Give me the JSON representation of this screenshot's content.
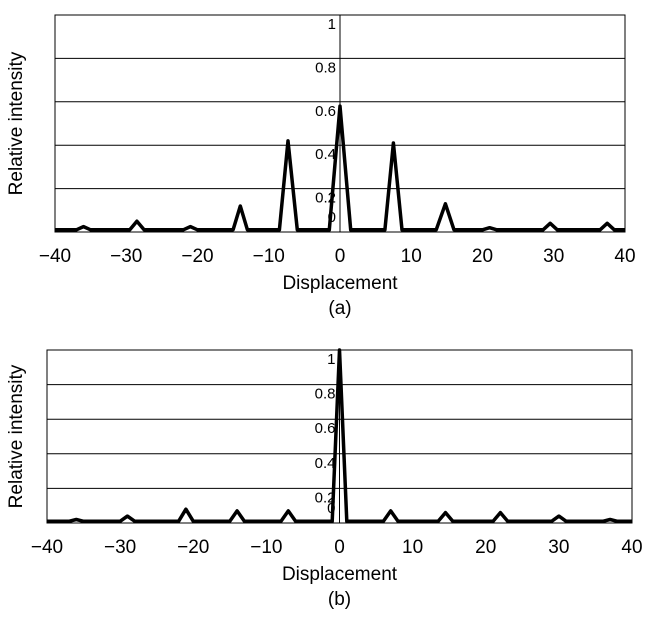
{
  "chart_data": [
    {
      "type": "line",
      "caption": "(a)",
      "xlabel": "Displacement",
      "ylabel": "Relative intensity",
      "color": "#000000",
      "grid": true,
      "xlim": [
        -40,
        40
      ],
      "xticks": [
        {
          "value": -40,
          "label": "−40"
        },
        {
          "value": -30,
          "label": "−30"
        },
        {
          "value": -20,
          "label": "−20"
        },
        {
          "value": -10,
          "label": "−10"
        },
        0,
        10,
        20,
        30,
        40
      ],
      "ylim": [
        0,
        1
      ],
      "yticks": [
        0,
        0.2,
        0.4,
        0.6,
        0.8,
        1
      ],
      "x": [
        -40,
        -37,
        -36,
        -35,
        -29.5,
        -28.5,
        -27.5,
        -22,
        -21,
        -20,
        -15,
        -14,
        -13,
        -8.5,
        -7.3,
        -6,
        -1.5,
        0,
        1.5,
        6.3,
        7.5,
        8.7,
        13.5,
        14.8,
        16,
        20,
        21,
        22,
        28.5,
        29.5,
        30.5,
        36.5,
        37.5,
        38.5,
        40
      ],
      "values": [
        0.01,
        0.01,
        0.025,
        0.01,
        0.01,
        0.05,
        0.01,
        0.01,
        0.025,
        0.01,
        0.01,
        0.12,
        0.01,
        0.01,
        0.42,
        0.01,
        0.01,
        0.58,
        0.01,
        0.01,
        0.41,
        0.01,
        0.01,
        0.13,
        0.01,
        0.01,
        0.02,
        0.01,
        0.01,
        0.04,
        0.01,
        0.01,
        0.04,
        0.01,
        0.01
      ]
    },
    {
      "type": "line",
      "caption": "(b)",
      "xlabel": "Displacement",
      "ylabel": "Relative intensity",
      "color": "#000000",
      "grid": true,
      "xlim": [
        -40,
        40
      ],
      "xticks": [
        {
          "value": -40,
          "label": "−40"
        },
        {
          "value": -30,
          "label": "−30"
        },
        {
          "value": -20,
          "label": "−20"
        },
        {
          "value": -10,
          "label": "−10"
        },
        0,
        10,
        20,
        30,
        40
      ],
      "ylim": [
        0,
        1
      ],
      "yticks": [
        0,
        0.2,
        0.4,
        0.6,
        0.8,
        1
      ],
      "x": [
        -40,
        -37,
        -36,
        -35,
        -30,
        -29,
        -28,
        -22,
        -21,
        -20,
        -15,
        -14,
        -13,
        -8,
        -7,
        -6,
        -1,
        0,
        1,
        6,
        7,
        8,
        13.5,
        14.5,
        15.5,
        21,
        22,
        23,
        29,
        30,
        31,
        36,
        37,
        38,
        40
      ],
      "values": [
        0.01,
        0.01,
        0.02,
        0.01,
        0.01,
        0.04,
        0.01,
        0.01,
        0.08,
        0.01,
        0.01,
        0.07,
        0.01,
        0.01,
        0.07,
        0.01,
        0.01,
        1,
        0.01,
        0.01,
        0.07,
        0.01,
        0.01,
        0.06,
        0.01,
        0.01,
        0.06,
        0.01,
        0.01,
        0.04,
        0.01,
        0.01,
        0.02,
        0.01,
        0.01
      ]
    }
  ]
}
